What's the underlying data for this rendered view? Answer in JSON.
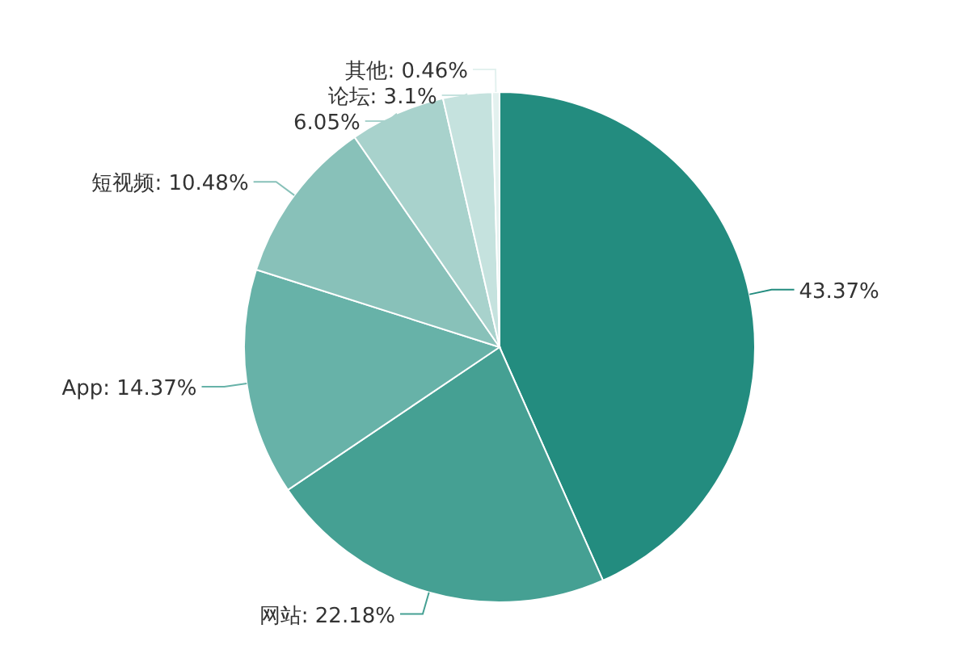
{
  "chart_data": {
    "type": "pie",
    "categories": [
      null,
      "网站",
      "App",
      "短视频",
      null,
      "论坛",
      "其他"
    ],
    "values": [
      43.37,
      22.18,
      14.37,
      10.48,
      6.05,
      3.1,
      0.46
    ],
    "colors": [
      "#238c7f",
      "#45a093",
      "#67b2a8",
      "#88c1b9",
      "#a8d2cc",
      "#c5e2de",
      "#e3f1ef"
    ],
    "value_labels": [
      "43.37%",
      ": 22.18%",
      ": 14.37%",
      ": 10.48%",
      "6.05%",
      ": 3.1%",
      ": 0.46%"
    ]
  }
}
